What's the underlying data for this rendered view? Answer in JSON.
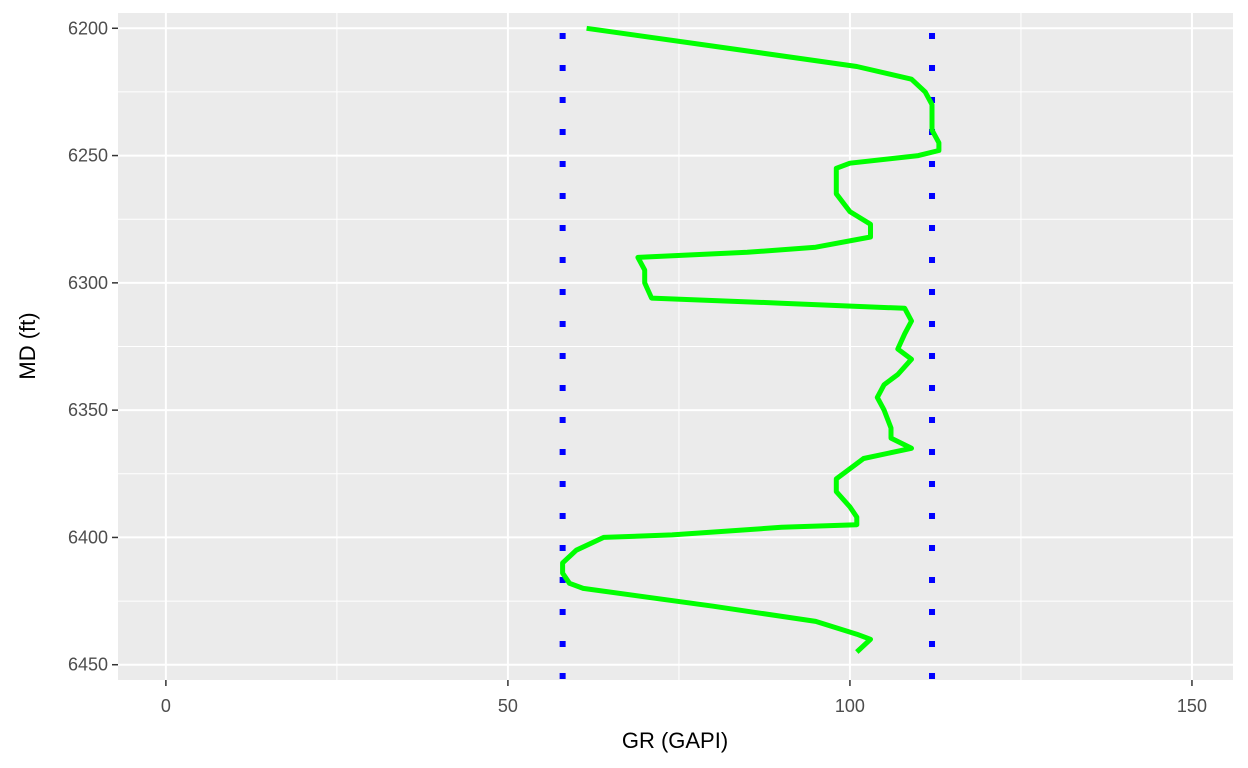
{
  "chart_data": {
    "type": "line",
    "title": "",
    "xlabel": "GR (GAPI)",
    "ylabel": "MD (ft)",
    "xlim": [
      -7,
      156
    ],
    "ylim": [
      6194,
      6456
    ],
    "y_reversed": true,
    "x_ticks": [
      0,
      50,
      100,
      150
    ],
    "y_ticks": [
      6200,
      6250,
      6300,
      6350,
      6400,
      6450
    ],
    "grid": true,
    "panel_background": "#ebebeb",
    "grid_color": "#ffffff",
    "series": [
      {
        "color": "#00ff00",
        "points": [
          [
            61.5,
            6200
          ],
          [
            80,
            6207
          ],
          [
            101,
            6215
          ],
          [
            109,
            6220
          ],
          [
            111,
            6225
          ],
          [
            112,
            6230
          ],
          [
            112,
            6240
          ],
          [
            113,
            6245
          ],
          [
            113,
            6248
          ],
          [
            110,
            6250
          ],
          [
            100,
            6253
          ],
          [
            98,
            6255
          ],
          [
            98,
            6265
          ],
          [
            100,
            6272
          ],
          [
            103,
            6277
          ],
          [
            103,
            6282
          ],
          [
            95,
            6286
          ],
          [
            85,
            6288
          ],
          [
            69,
            6290
          ],
          [
            70,
            6295
          ],
          [
            70,
            6300
          ],
          [
            71,
            6306
          ],
          [
            90,
            6308
          ],
          [
            108,
            6310
          ],
          [
            109,
            6315
          ],
          [
            108,
            6320
          ],
          [
            107,
            6326
          ],
          [
            109,
            6330
          ],
          [
            107,
            6336
          ],
          [
            105,
            6340
          ],
          [
            104,
            6345
          ],
          [
            105,
            6350
          ],
          [
            106,
            6357
          ],
          [
            106,
            6361
          ],
          [
            109,
            6365
          ],
          [
            102,
            6369
          ],
          [
            100,
            6373
          ],
          [
            98,
            6377
          ],
          [
            98,
            6382
          ],
          [
            100,
            6388
          ],
          [
            101,
            6392
          ],
          [
            101,
            6395
          ],
          [
            90,
            6396
          ],
          [
            74,
            6399
          ],
          [
            64,
            6400
          ],
          [
            60,
            6405
          ],
          [
            58,
            6410
          ],
          [
            58,
            6414
          ],
          [
            59,
            6418
          ],
          [
            61,
            6420
          ],
          [
            80,
            6427
          ],
          [
            95,
            6433
          ],
          [
            101,
            6438
          ],
          [
            103,
            6440
          ],
          [
            101,
            6445
          ]
        ]
      }
    ],
    "reference_lines": [
      {
        "x": 58,
        "color": "#0000ff",
        "style": "dotted"
      },
      {
        "x": 112,
        "color": "#0000ff",
        "style": "dotted"
      }
    ]
  }
}
